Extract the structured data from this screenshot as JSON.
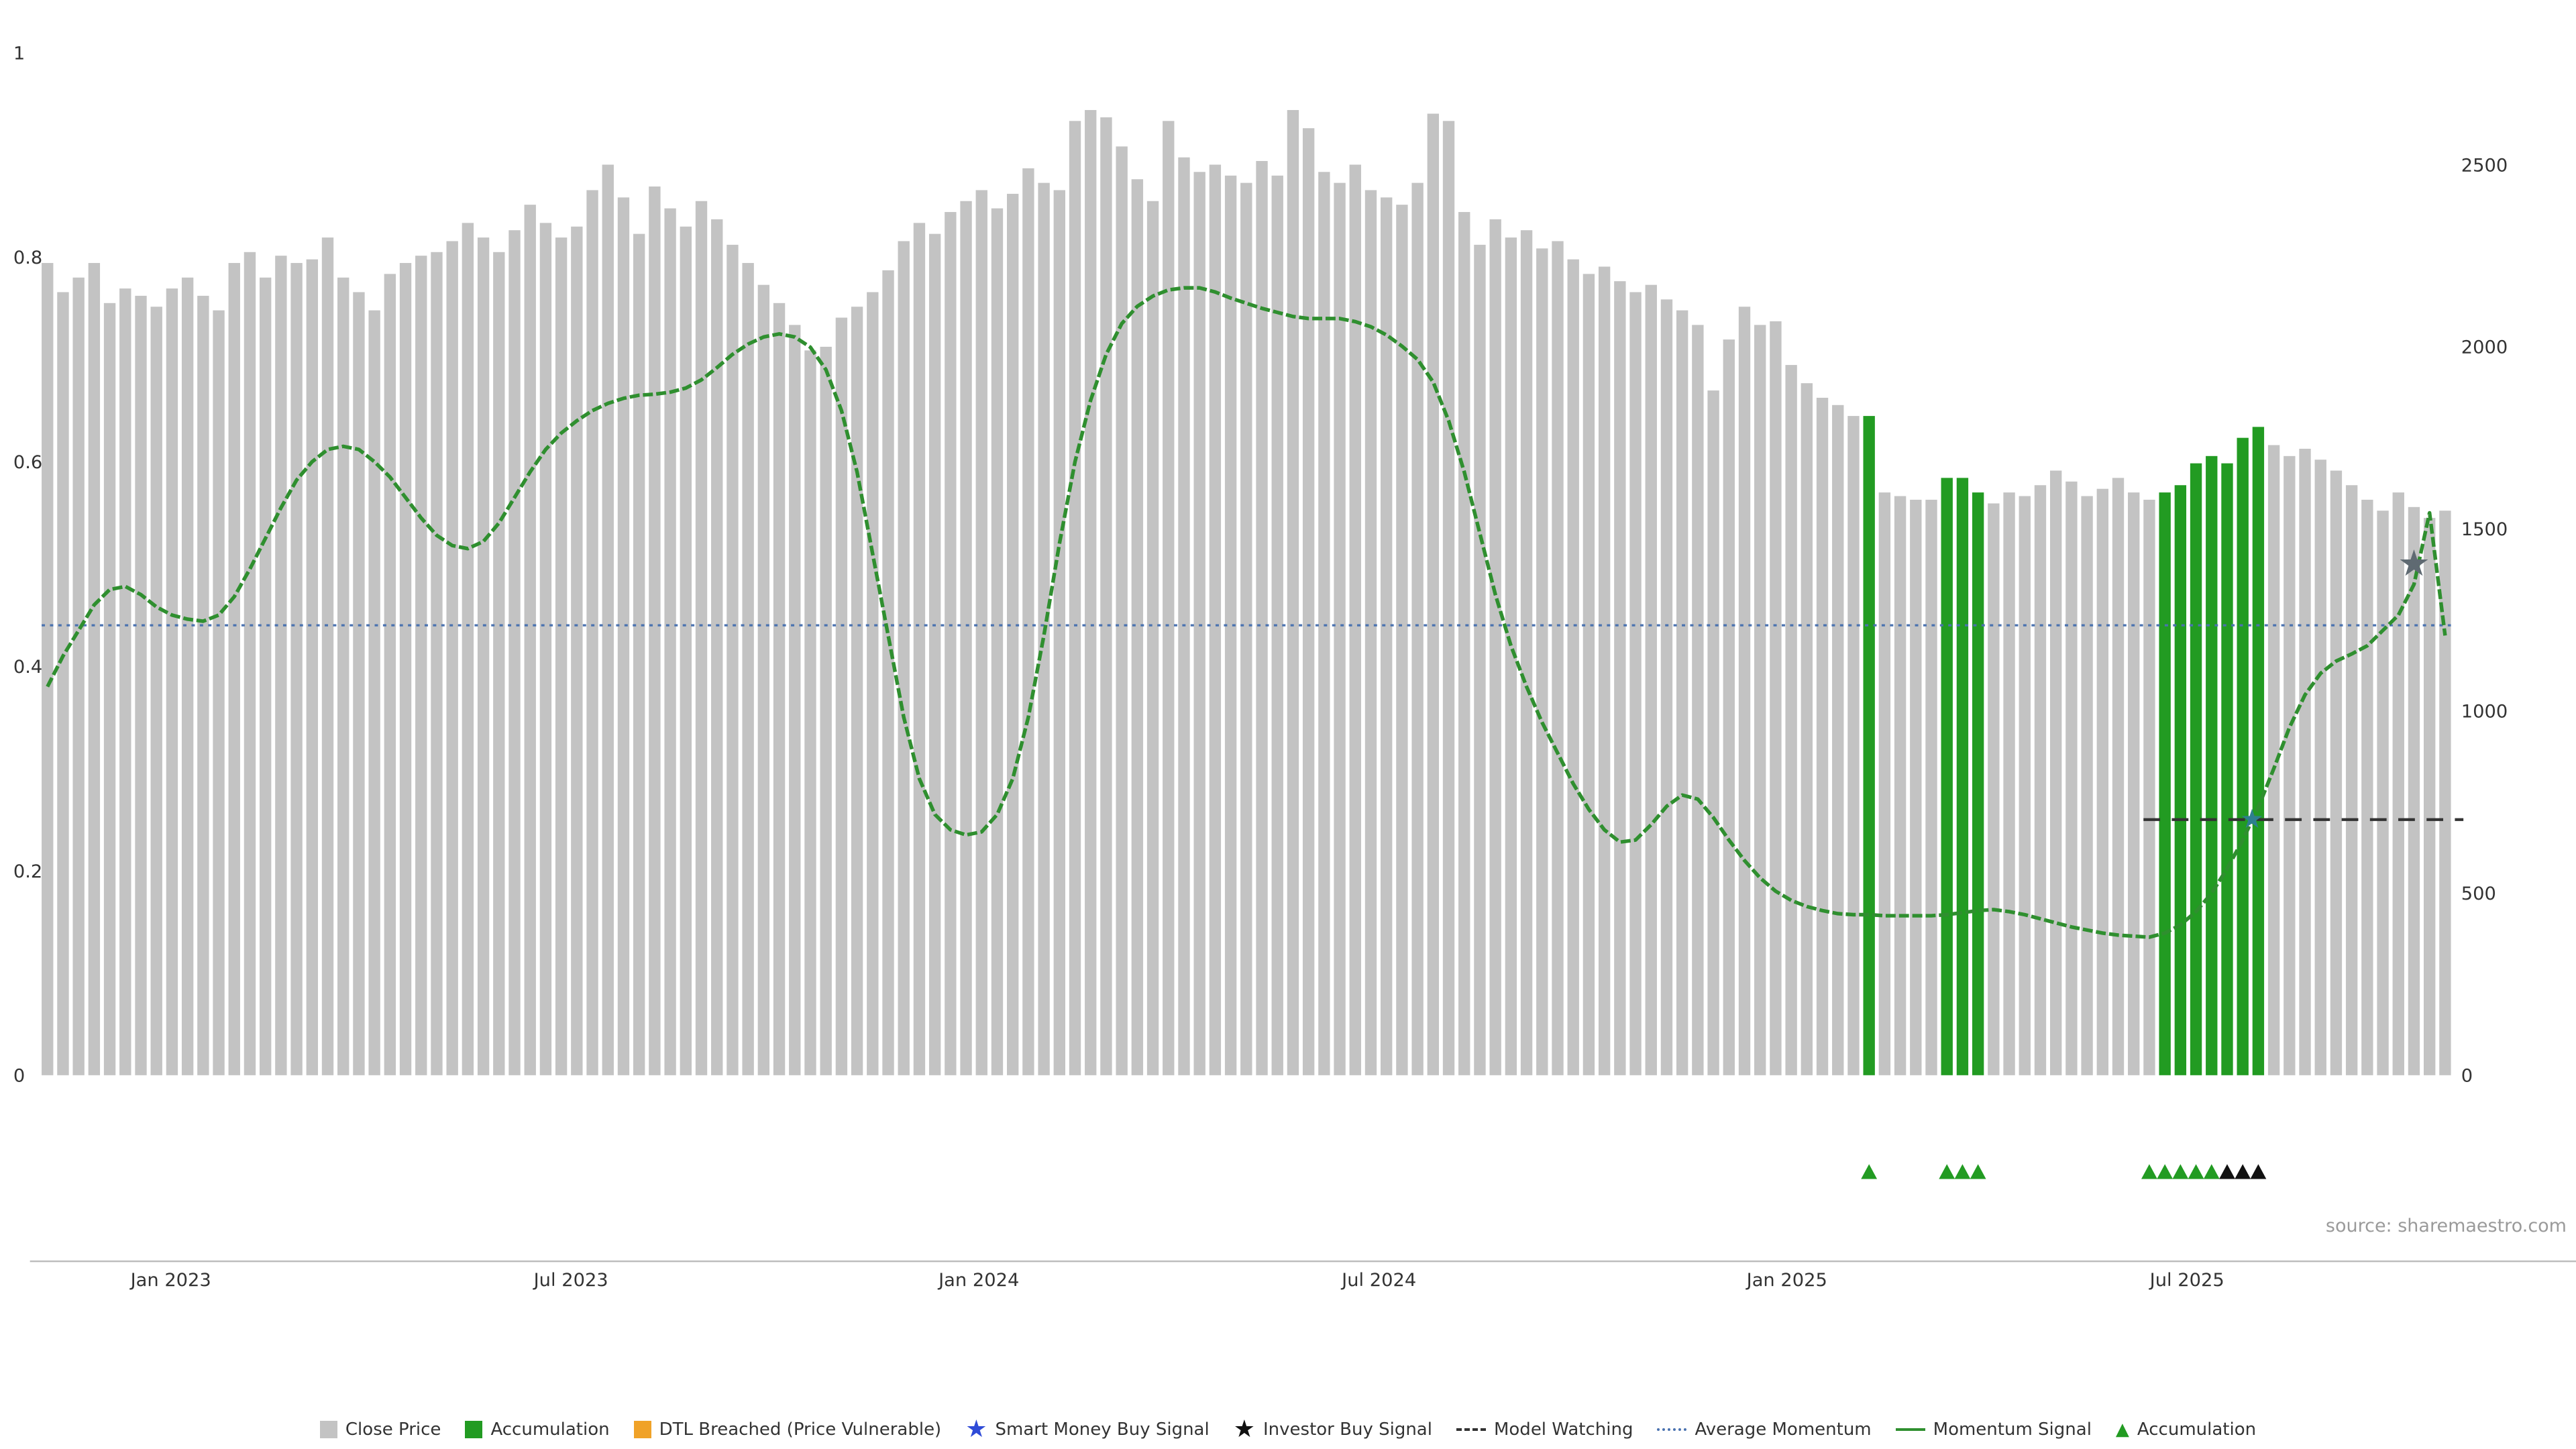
{
  "page": {
    "background": "#ffffff",
    "source": "source: sharemaestro.com"
  },
  "colors": {
    "close_price": "#c3c3c3",
    "accumulation": "#229b22",
    "dtl_breached": "#f0a228",
    "smart_money_star": "#2f4bd7",
    "investor_star": "#111111",
    "smart_money_marker": "#2e7f8f",
    "investor_marker": "#5f6a72",
    "model_watching": "#333333",
    "average_momentum": "#4a72b0",
    "momentum_signal": "#2f8f2f",
    "axis_text": "#333333",
    "axis_line": "#bbbbbb",
    "triangle_green": "#229b22",
    "triangle_black": "#111111"
  },
  "legend": [
    {
      "label": "Close Price",
      "swatch": "square",
      "color": "#c3c3c3"
    },
    {
      "label": "Accumulation",
      "swatch": "square",
      "color": "#229b22"
    },
    {
      "label": "DTL Breached (Price Vulnerable)",
      "swatch": "square",
      "color": "#f0a228"
    },
    {
      "label": "Smart Money Buy Signal",
      "swatch": "star",
      "color": "#2f4bd7"
    },
    {
      "label": "Investor Buy Signal",
      "swatch": "star",
      "color": "#111111"
    },
    {
      "label": "Model Watching",
      "swatch": "dashed-line",
      "color": "#333333"
    },
    {
      "label": "Average Momentum",
      "swatch": "dotted-line",
      "color": "#4a72b0"
    },
    {
      "label": "Momentum Signal",
      "swatch": "solid-line",
      "color": "#2f8f2f"
    },
    {
      "label": "Accumulation",
      "swatch": "triangle",
      "color": "#229b22"
    }
  ],
  "chart_data": {
    "type": "mixed",
    "left_axis": {
      "ticks": [
        0,
        0.2,
        0.4,
        0.6,
        0.8,
        1
      ],
      "range": [
        0,
        1
      ]
    },
    "right_axis": {
      "ticks": [
        0,
        500,
        1000,
        1500,
        2000,
        2500
      ],
      "range": [
        0,
        2807
      ]
    },
    "x_ticks": [
      {
        "label": "Jan 2023",
        "week": 8.3
      },
      {
        "label": "Jul 2023",
        "week": 34.0
      },
      {
        "label": "Jan 2024",
        "week": 60.2
      },
      {
        "label": "Jul 2024",
        "week": 85.9
      },
      {
        "label": "Jan 2025",
        "week": 112.1
      },
      {
        "label": "Jul 2025",
        "week": 137.8
      }
    ],
    "series": [
      {
        "name": "Close Price",
        "type": "bar",
        "axis": "right",
        "values": [
          2230,
          2150,
          2190,
          2230,
          2120,
          2160,
          2140,
          2110,
          2160,
          2190,
          2140,
          2100,
          2230,
          2260,
          2190,
          2250,
          2230,
          2240,
          2300,
          2190,
          2150,
          2100,
          2200,
          2230,
          2250,
          2260,
          2290,
          2340,
          2300,
          2260,
          2320,
          2390,
          2340,
          2300,
          2330,
          2430,
          2500,
          2410,
          2310,
          2440,
          2380,
          2330,
          2400,
          2350,
          2280,
          2230,
          2170,
          2120,
          2060,
          1990,
          2000,
          2080,
          2110,
          2150,
          2210,
          2290,
          2340,
          2310,
          2370,
          2400,
          2430,
          2380,
          2420,
          2490,
          2450,
          2430,
          2620,
          2650,
          2630,
          2550,
          2460,
          2400,
          2620,
          2520,
          2480,
          2500,
          2470,
          2450,
          2510,
          2470,
          2650,
          2600,
          2480,
          2450,
          2500,
          2430,
          2410,
          2390,
          2450,
          2640,
          2620,
          2370,
          2280,
          2350,
          2300,
          2320,
          2270,
          2290,
          2240,
          2200,
          2220,
          2180,
          2150,
          2170,
          2130,
          2100,
          2060,
          1880,
          2020,
          2110,
          2060,
          2070,
          1950,
          1900,
          1860,
          1840,
          1810,
          1810,
          1600,
          1590,
          1580,
          1580,
          1640,
          1640,
          1600,
          1570,
          1600,
          1590,
          1620,
          1660,
          1630,
          1590,
          1610,
          1640,
          1600,
          1580,
          1600,
          1620,
          1680,
          1700,
          1680,
          1750,
          1780,
          1730,
          1700,
          1720,
          1690,
          1660,
          1620,
          1580,
          1550,
          1600,
          1560,
          1530,
          1550
        ]
      },
      {
        "name": "Momentum Signal",
        "type": "line",
        "axis": "left",
        "values": [
          0.38,
          0.41,
          0.435,
          0.46,
          0.475,
          0.478,
          0.47,
          0.458,
          0.45,
          0.446,
          0.444,
          0.45,
          0.468,
          0.495,
          0.525,
          0.555,
          0.582,
          0.6,
          0.612,
          0.615,
          0.612,
          0.6,
          0.585,
          0.565,
          0.545,
          0.528,
          0.518,
          0.515,
          0.522,
          0.54,
          0.565,
          0.59,
          0.612,
          0.628,
          0.64,
          0.65,
          0.657,
          0.662,
          0.665,
          0.666,
          0.668,
          0.672,
          0.68,
          0.692,
          0.705,
          0.715,
          0.722,
          0.725,
          0.722,
          0.712,
          0.69,
          0.65,
          0.59,
          0.51,
          0.43,
          0.35,
          0.29,
          0.255,
          0.24,
          0.235,
          0.238,
          0.255,
          0.29,
          0.35,
          0.43,
          0.52,
          0.6,
          0.66,
          0.705,
          0.735,
          0.752,
          0.762,
          0.768,
          0.77,
          0.77,
          0.766,
          0.76,
          0.755,
          0.75,
          0.746,
          0.742,
          0.74,
          0.74,
          0.74,
          0.737,
          0.732,
          0.724,
          0.713,
          0.7,
          0.678,
          0.64,
          0.59,
          0.53,
          0.47,
          0.42,
          0.38,
          0.345,
          0.315,
          0.285,
          0.26,
          0.24,
          0.228,
          0.23,
          0.245,
          0.263,
          0.274,
          0.27,
          0.252,
          0.23,
          0.21,
          0.193,
          0.18,
          0.171,
          0.165,
          0.161,
          0.158,
          0.157,
          0.157,
          0.156,
          0.156,
          0.156,
          0.156,
          0.157,
          0.159,
          0.161,
          0.162,
          0.16,
          0.157,
          0.153,
          0.149,
          0.145,
          0.142,
          0.139,
          0.137,
          0.136,
          0.135,
          0.139,
          0.147,
          0.16,
          0.178,
          0.202,
          0.23,
          0.262,
          0.3,
          0.34,
          0.372,
          0.393,
          0.405,
          0.412,
          0.42,
          0.435,
          0.45,
          0.48,
          0.55,
          0.43
        ]
      }
    ],
    "accumulation_weeks": [
      117,
      122,
      123,
      124,
      136,
      137,
      138,
      139,
      140,
      141,
      142
    ],
    "average_momentum": 0.44,
    "model_watching": {
      "momentum": 0.25,
      "start_week": 135,
      "end_week": 154.8
    },
    "markers": {
      "smart_money_buy_signal": {
        "week": 141.6,
        "momentum": 0.25
      },
      "investor_buy_signal": {
        "week": 152,
        "momentum": 0.5
      }
    },
    "triangles": {
      "green_weeks": [
        117,
        122,
        123,
        124,
        135,
        136,
        137,
        138,
        139
      ],
      "black_weeks": [
        140,
        141,
        142
      ]
    }
  }
}
